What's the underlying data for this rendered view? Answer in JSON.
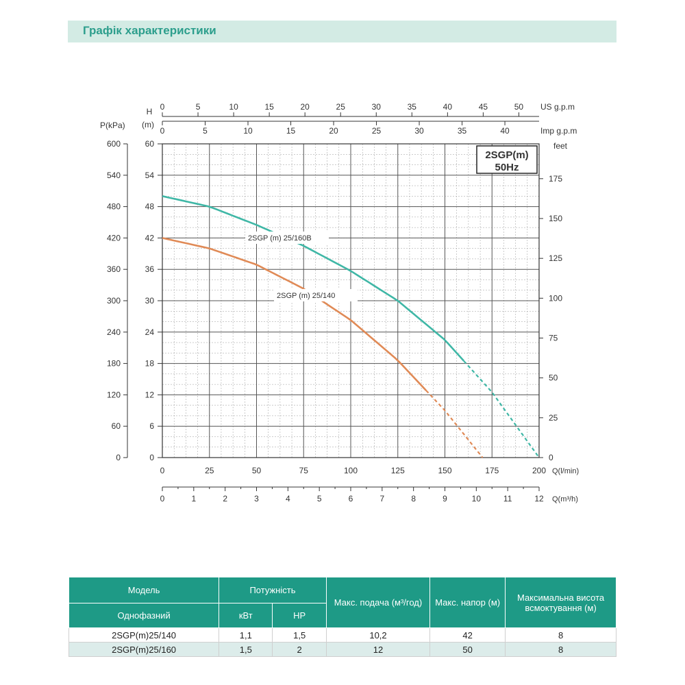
{
  "header": {
    "title": "Графік характеристики"
  },
  "chart_data": {
    "type": "line",
    "badge": {
      "line1": "2SGP(m)",
      "line2": "50Hz"
    },
    "axes": {
      "pressure": {
        "label": "P(kPa)",
        "ticks": [
          "0",
          "60",
          "120",
          "180",
          "240",
          "300",
          "360",
          "420",
          "480",
          "540",
          "600"
        ],
        "range": [
          0,
          600
        ]
      },
      "head": {
        "label_h": "H",
        "label_m": "(m)",
        "ticks": [
          "0",
          "6",
          "12",
          "18",
          "24",
          "30",
          "36",
          "42",
          "48",
          "54",
          "60"
        ],
        "range": [
          0,
          60
        ]
      },
      "feet": {
        "label": "feet",
        "ticks": [
          "0",
          "25",
          "50",
          "75",
          "100",
          "125",
          "150",
          "175"
        ]
      },
      "flow_lmin": {
        "label": "Q(l/min)",
        "ticks": [
          "0",
          "25",
          "50",
          "75",
          "100",
          "125",
          "150",
          "175",
          "200"
        ],
        "range": [
          0,
          200
        ]
      },
      "flow_m3h": {
        "label": "Q(m³/h)",
        "ticks": [
          "0",
          "1",
          "2",
          "3",
          "4",
          "5",
          "6",
          "7",
          "8",
          "9",
          "10",
          "11",
          "12"
        ],
        "range": [
          0,
          12
        ]
      },
      "us_gpm": {
        "label": "US  g.p.m",
        "ticks": [
          "0",
          "5",
          "10",
          "15",
          "20",
          "25",
          "30",
          "35",
          "40",
          "45",
          "50"
        ]
      },
      "imp_gpm": {
        "label": "Imp  g.p.m",
        "ticks": [
          "0",
          "5",
          "10",
          "15",
          "20",
          "25",
          "30",
          "35",
          "40"
        ]
      }
    },
    "grid": true,
    "series": [
      {
        "name": "2SGP (m) 25/160B",
        "color": "#3fb7a6",
        "x": [
          0,
          25,
          50,
          75,
          100,
          125,
          150,
          175,
          200
        ],
        "y": [
          50,
          48,
          44.5,
          40.5,
          35.7,
          30,
          22.5,
          12.5,
          0
        ],
        "dashed_from_x": 160
      },
      {
        "name": "2SGP (m) 25/140",
        "color": "#e08a56",
        "x": [
          0,
          25,
          50,
          75,
          100,
          125,
          150,
          170
        ],
        "y": [
          42,
          40,
          36.9,
          32.3,
          26.3,
          18.6,
          9,
          0
        ],
        "dashed_from_x": 140
      }
    ]
  },
  "table": {
    "headers": {
      "model": "Модель",
      "single_phase": "Однофазний",
      "power": "Потужність",
      "kw": "кВт",
      "hp": "HP",
      "max_flow": "Макс. подача (м³/год)",
      "max_head": "Макс. напор (м)",
      "max_suction": "Максимальна висота всмоктування (м)"
    },
    "rows": [
      {
        "model": "2SGP(m)25/140",
        "kw": "1,1",
        "hp": "1,5",
        "flow": "10,2",
        "head": "42",
        "suction": "8"
      },
      {
        "model": "2SGP(m)25/160",
        "kw": "1,5",
        "hp": "2",
        "flow": "12",
        "head": "50",
        "suction": "8"
      }
    ]
  }
}
